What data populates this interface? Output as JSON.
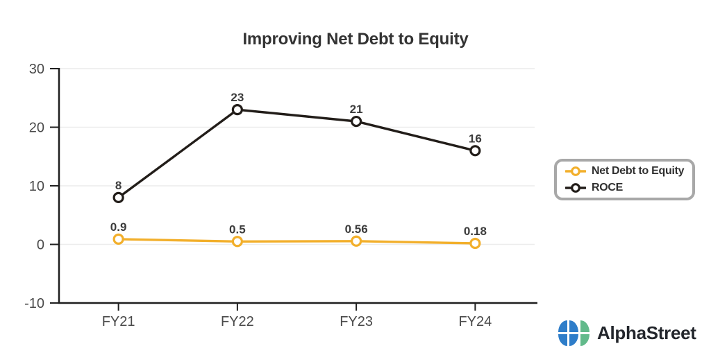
{
  "chart_data": {
    "type": "line",
    "title": "Improving Net Debt to Equity",
    "categories": [
      "FY21",
      "FY22",
      "FY23",
      "FY24"
    ],
    "series": [
      {
        "name": "Net Debt to Equity",
        "values": [
          0.9,
          0.5,
          0.56,
          0.18
        ],
        "color": "#F2AF2B"
      },
      {
        "name": "ROCE",
        "values": [
          8,
          23,
          21,
          16
        ],
        "color": "#221D19"
      }
    ],
    "ylim": [
      -10,
      30
    ],
    "yticks": [
      30,
      20,
      10,
      0,
      -10
    ],
    "grid": true,
    "legend_position": "right",
    "xlabel": "",
    "ylabel": "",
    "marker_style": "open-circle"
  },
  "colors": {
    "background": "#FFFFFF",
    "grid": "#ECECEC",
    "axis": "#1F1F1F",
    "tick_label": "#4A4A4A",
    "value_label": "#3B3B3B",
    "title": "#333333",
    "legend_border": "#A8A8A8",
    "legend_bg": "#FFFFFF"
  },
  "branding": {
    "name": "AlphaStreet",
    "text_color": "#23262C",
    "icon_blue": "#2E7DC9",
    "icon_green": "#62BA8B"
  }
}
